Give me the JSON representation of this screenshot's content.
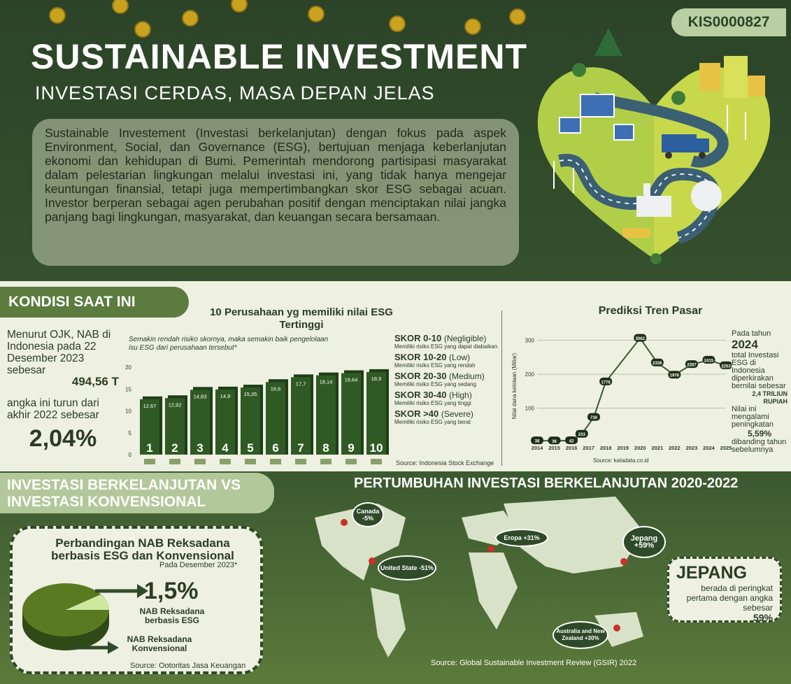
{
  "header": {
    "id_badge": "KIS0000827",
    "title": "SUSTAINABLE INVESTMENT",
    "subtitle": "INVESTASI CERDAS, MASA DEPAN JELAS",
    "intro": "Sustainable Investement (Investasi berkelanjutan) dengan fokus pada aspek Environment, Social, dan Governance (ESG), bertujuan menjaga keberlanjutan ekonomi dan kehidupan di Bumi. Pemerintah mendorong partisipasi masyarakat dalam pelestarian lingkungan melalui investasi ini, yang tidak hanya mengejar keuntungan finansial, tetapi juga mempertimbangkan skor ESG sebagai acuan. Investor berperan sebagai agen perubahan positif dengan menciptakan nilai jangka panjang bagi lingkungan, masyarakat, dan keuangan secara bersamaan."
  },
  "kondisi": {
    "tab": "KONDISI SAAT INI",
    "text1": "Menurut OJK, NAB di Indonesia pada 22 Desember 2023 sebesar",
    "value1": "494,56 T",
    "text2": "angka ini turun dari akhir 2022 sebesar",
    "value2": "2,04%"
  },
  "bar_section": {
    "title": "10 Perusahaan yg memiliki nilai ESG Tertinggi",
    "note": "Semakin rendah risiko skornya, maka semakin baik pengelolaan isu ESG dari perusahaan tersebut*",
    "source": "Source: Indonesia Stock Exchange",
    "scores": [
      {
        "range": "SKOR 0-10",
        "level": "(Negligible)",
        "desc": "Memiliki risiko ESG yang dapat diabaikan"
      },
      {
        "range": "SKOR 10-20",
        "level": "(Low)",
        "desc": "Memiliki risiko ESG yang rendah"
      },
      {
        "range": "SKOR 20-30",
        "level": "(Medium)",
        "desc": "Memiliki risiko ESG yang sedang"
      },
      {
        "range": "SKOR 30-40",
        "level": "(High)",
        "desc": "Memiliki risiko ESG yang tinggi"
      },
      {
        "range": "SKOR >40",
        "level": "(Severe)",
        "desc": "Memiliki risiko ESG yang berat"
      }
    ]
  },
  "line_section": {
    "title": "Prediksi Tren Pasar",
    "source": "Source: katadata.co.id",
    "pred_text1": "Pada tahun",
    "pred_year": "2024",
    "pred_text2": "total Investasi ESG di Indonesia diperkirakan bernilai sebesar",
    "pred_value": "2,4 TRILIUN RUPIAH",
    "pred_text3": "Nilai ini mengalami peningkatan",
    "pred_pct": "5,59%",
    "pred_text4": "dibanding tahun sebelumnya"
  },
  "chart_data": [
    {
      "type": "bar",
      "categories": [
        "1",
        "2",
        "3",
        "4",
        "5",
        "6",
        "7",
        "8",
        "9",
        "10"
      ],
      "values": [
        12.67,
        12.92,
        14.83,
        14.9,
        15.35,
        16.6,
        17.7,
        18.14,
        18.64,
        18.9
      ],
      "value_labels": [
        "12,67",
        "12,92",
        "14,83",
        "14,9",
        "15,35",
        "16,6",
        "17,7",
        "18,14",
        "18,64",
        "18,9"
      ],
      "ylim": [
        0,
        20
      ],
      "yticks": [
        "0",
        "5",
        "10",
        "15",
        "20"
      ],
      "color": "#2f5a24"
    },
    {
      "type": "line",
      "x": [
        "2014",
        "2015",
        "2016",
        "2017",
        "2018",
        "2019",
        "2020",
        "2021",
        "2022",
        "2023",
        "2024",
        "2025"
      ],
      "points": [
        {
          "x": "2014",
          "y": 38
        },
        {
          "x": "2015",
          "y": 36
        },
        {
          "x": "2016",
          "y": 42
        },
        {
          "x": "2016.6",
          "y": 233
        },
        {
          "x": "2017.3",
          "y": 730
        },
        {
          "x": "2018",
          "y": 1776
        },
        {
          "x": "2020",
          "y": 3062
        },
        {
          "x": "2021",
          "y": 2336
        },
        {
          "x": "2022",
          "y": 1976
        },
        {
          "x": "2023",
          "y": 2287
        },
        {
          "x": "2024",
          "y": 2415
        },
        {
          "x": "2025",
          "y": 2253
        }
      ],
      "ylabel": "Nilai dana kelolaan (Miliar)",
      "yticks": [
        "100",
        "200",
        "300"
      ],
      "color": "#3d5a30"
    },
    {
      "type": "pie",
      "title": "Perbandingan NAB Reksadana berbasis ESG dan Konvensional",
      "slices": [
        {
          "name": "NAB Reksadana berbasis ESG",
          "value": 1.5
        },
        {
          "name": "NAB Reksadana Konvensional",
          "value": 98.5
        }
      ]
    }
  ],
  "compare": {
    "tab": "INVESTASI BERKELANJUTAN VS INVESTASI KONVENSIONAL",
    "pie_title": "Perbandingan  NAB Reksadana berbasis ESG dan Konvensional",
    "pie_date": "Pada Desember 2023*",
    "pie_pct": "1,5%",
    "label_esg": "NAB Reksadana berbasis ESG",
    "label_konv": "NAB Reksadana Konvensional",
    "source": "Source: Ootoritas Jasa Keuangan"
  },
  "growth": {
    "title": "PERTUMBUHAN INVESTASI BERKELANJUTAN 2020-2022",
    "canada": "Canada -5%",
    "us": "United State -51%",
    "eropa": "Eropa +31%",
    "jepang": "Jepang +59%",
    "aus": "Australia and New Zealand +30%",
    "box_title": "JEPANG",
    "box_text": "berada di peringkat pertama dengan angka sebesar",
    "box_pct": "59%",
    "source": "Source: Global Sustainable Investment Review (GSIR) 2022"
  }
}
